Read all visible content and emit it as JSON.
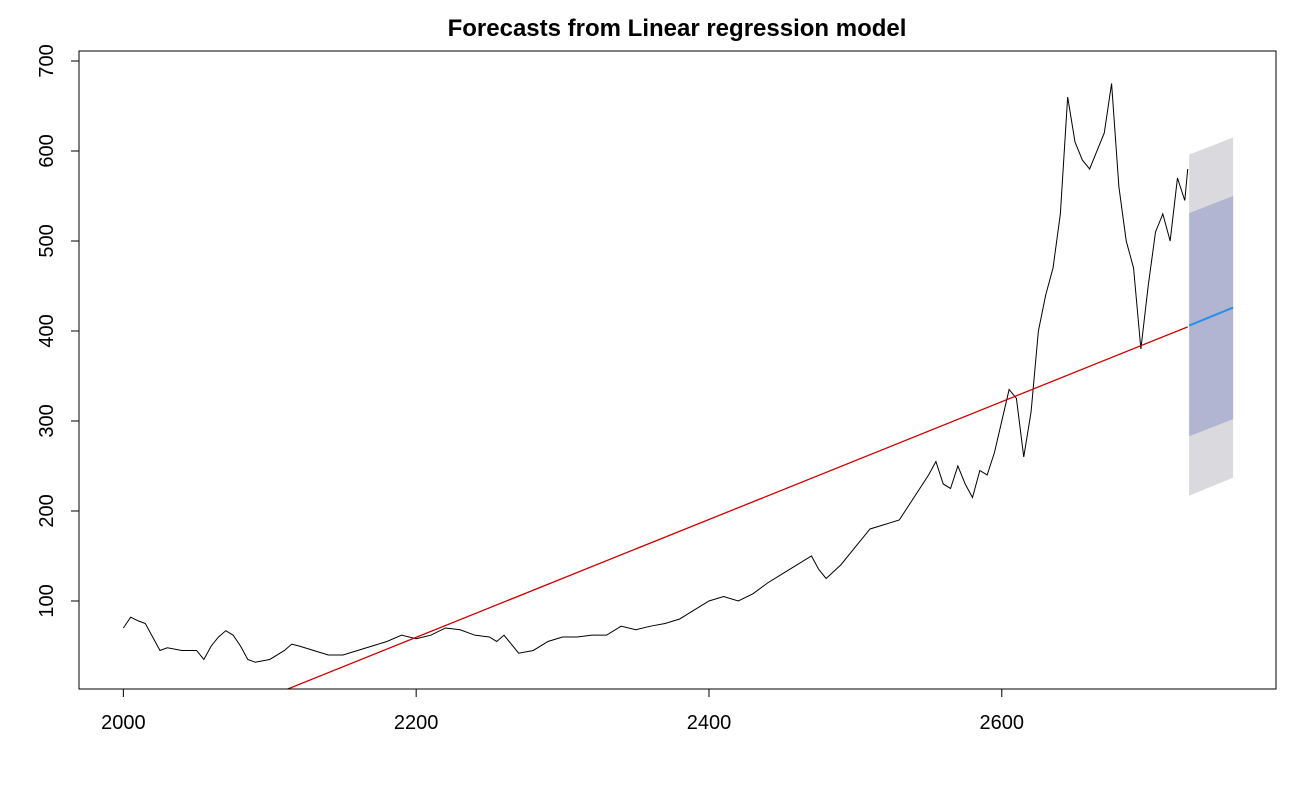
{
  "chart_data": {
    "type": "line",
    "title": "Forecasts from Linear regression model",
    "x": [
      2000,
      2005,
      2010,
      2015,
      2020,
      2025,
      2030,
      2040,
      2050,
      2055,
      2060,
      2065,
      2070,
      2075,
      2080,
      2085,
      2090,
      2100,
      2110,
      2115,
      2120,
      2130,
      2140,
      2150,
      2160,
      2170,
      2180,
      2190,
      2200,
      2210,
      2220,
      2230,
      2240,
      2250,
      2255,
      2260,
      2270,
      2280,
      2290,
      2300,
      2310,
      2320,
      2330,
      2340,
      2350,
      2360,
      2370,
      2380,
      2390,
      2400,
      2410,
      2420,
      2430,
      2440,
      2450,
      2460,
      2470,
      2475,
      2480,
      2490,
      2500,
      2510,
      2520,
      2530,
      2540,
      2550,
      2555,
      2560,
      2565,
      2570,
      2575,
      2580,
      2585,
      2590,
      2595,
      2600,
      2605,
      2610,
      2615,
      2620,
      2625,
      2630,
      2635,
      2640,
      2645,
      2650,
      2655,
      2660,
      2665,
      2670,
      2675,
      2680,
      2685,
      2690,
      2695,
      2700,
      2705,
      2710,
      2715,
      2720,
      2725,
      2727
    ],
    "values": [
      70,
      82,
      78,
      75,
      60,
      45,
      48,
      45,
      45,
      35,
      50,
      60,
      67,
      62,
      50,
      35,
      32,
      35,
      45,
      52,
      50,
      45,
      40,
      40,
      45,
      50,
      55,
      62,
      58,
      62,
      70,
      68,
      62,
      60,
      55,
      62,
      42,
      45,
      55,
      60,
      60,
      62,
      62,
      72,
      68,
      72,
      75,
      80,
      90,
      100,
      105,
      100,
      108,
      120,
      130,
      140,
      150,
      135,
      125,
      140,
      160,
      180,
      185,
      190,
      215,
      240,
      255,
      230,
      225,
      250,
      230,
      215,
      245,
      240,
      265,
      300,
      335,
      325,
      260,
      310,
      400,
      440,
      470,
      530,
      660,
      610,
      590,
      580,
      600,
      620,
      675,
      560,
      500,
      470,
      380,
      450,
      510,
      530,
      500,
      570,
      545,
      580
    ],
    "color": "#000000",
    "fitted": {
      "x": [
        2000,
        2727
      ],
      "values": [
        -71.3,
        404.6
      ],
      "color": "#cc0000"
    },
    "forecast": {
      "x": [
        2728,
        2758
      ],
      "mean": [
        406,
        426
      ],
      "lo80": [
        283,
        302
      ],
      "hi80": [
        531,
        550
      ],
      "lo95": [
        217,
        237
      ],
      "hi95": [
        596,
        615
      ],
      "color": "#2a8fe8",
      "color80": "#b1b5d1",
      "color95": "#d9d9de"
    },
    "xlim": [
      1969.7,
      2787.3
    ],
    "ylim": [
      2.2,
      711.1
    ],
    "xticks": [
      2000,
      2200,
      2400,
      2600
    ],
    "yticks": [
      100,
      200,
      300,
      400,
      500,
      600,
      700
    ]
  }
}
